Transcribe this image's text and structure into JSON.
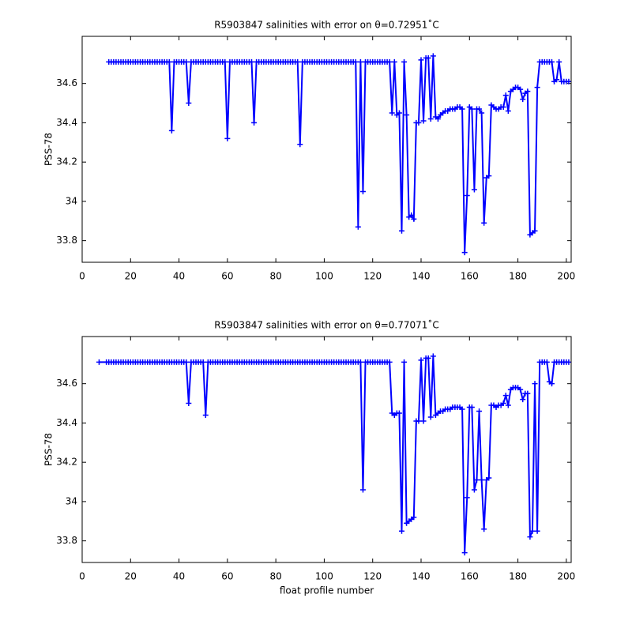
{
  "chart_data": [
    {
      "type": "line",
      "title": "R5903847 salinities with error on θ=0.72951˚C",
      "ylabel": "PSS-78",
      "color": "#0000ff",
      "marker": "+",
      "xlim": [
        0,
        202
      ],
      "ylim": [
        33.69,
        34.84
      ],
      "xticks": [
        0,
        20,
        40,
        60,
        80,
        100,
        120,
        140,
        160,
        180,
        200
      ],
      "yticks": [
        33.8,
        34,
        34.2,
        34.4,
        34.6
      ],
      "x": [
        11,
        12,
        13,
        14,
        15,
        16,
        17,
        18,
        19,
        20,
        21,
        22,
        23,
        24,
        25,
        26,
        27,
        28,
        29,
        30,
        31,
        32,
        33,
        34,
        35,
        36,
        37,
        38,
        39,
        40,
        41,
        42,
        43,
        44,
        45,
        46,
        47,
        48,
        49,
        50,
        51,
        52,
        53,
        54,
        55,
        56,
        57,
        58,
        59,
        60,
        61,
        62,
        63,
        64,
        65,
        66,
        67,
        68,
        69,
        70,
        71,
        72,
        73,
        74,
        75,
        76,
        77,
        78,
        79,
        80,
        81,
        82,
        83,
        84,
        85,
        86,
        87,
        88,
        89,
        90,
        91,
        92,
        93,
        94,
        95,
        96,
        97,
        98,
        99,
        100,
        101,
        102,
        103,
        104,
        105,
        106,
        107,
        108,
        109,
        110,
        111,
        112,
        113,
        114,
        115,
        116,
        117,
        118,
        119,
        120,
        121,
        122,
        123,
        124,
        125,
        126,
        127,
        128,
        129,
        130,
        131,
        132,
        133,
        134,
        135,
        136,
        137,
        138,
        139,
        140,
        141,
        142,
        143,
        144,
        145,
        146,
        147,
        148,
        149,
        150,
        151,
        152,
        153,
        154,
        155,
        156,
        157,
        158,
        159,
        160,
        161,
        162,
        163,
        164,
        165,
        166,
        167,
        168,
        169,
        170,
        171,
        172,
        173,
        174,
        175,
        176,
        177,
        178,
        179,
        180,
        181,
        182,
        183,
        184,
        185,
        186,
        187,
        188,
        189,
        190,
        191,
        192,
        193,
        194,
        195,
        196,
        197,
        198,
        199,
        200,
        201
      ],
      "values": [
        34.71,
        34.71,
        34.71,
        34.71,
        34.71,
        34.71,
        34.71,
        34.71,
        34.71,
        34.71,
        34.71,
        34.71,
        34.71,
        34.71,
        34.71,
        34.71,
        34.71,
        34.71,
        34.71,
        34.71,
        34.71,
        34.71,
        34.71,
        34.71,
        34.71,
        34.71,
        34.36,
        34.71,
        34.71,
        34.71,
        34.71,
        34.71,
        34.71,
        34.5,
        34.71,
        34.71,
        34.71,
        34.71,
        34.71,
        34.71,
        34.71,
        34.71,
        34.71,
        34.71,
        34.71,
        34.71,
        34.71,
        34.71,
        34.71,
        34.32,
        34.71,
        34.71,
        34.71,
        34.71,
        34.71,
        34.71,
        34.71,
        34.71,
        34.71,
        34.71,
        34.4,
        34.71,
        34.71,
        34.71,
        34.71,
        34.71,
        34.71,
        34.71,
        34.71,
        34.71,
        34.71,
        34.71,
        34.71,
        34.71,
        34.71,
        34.71,
        34.71,
        34.71,
        34.71,
        34.29,
        34.71,
        34.71,
        34.71,
        34.71,
        34.71,
        34.71,
        34.71,
        34.71,
        34.71,
        34.71,
        34.71,
        34.71,
        34.71,
        34.71,
        34.71,
        34.71,
        34.71,
        34.71,
        34.71,
        34.71,
        34.71,
        34.71,
        34.71,
        33.87,
        34.71,
        34.05,
        34.71,
        34.71,
        34.71,
        34.71,
        34.71,
        34.71,
        34.71,
        34.71,
        34.71,
        34.71,
        34.71,
        34.45,
        34.71,
        34.44,
        34.45,
        33.85,
        34.71,
        34.44,
        33.92,
        33.93,
        33.91,
        34.4,
        34.4,
        34.72,
        34.41,
        34.73,
        34.73,
        34.42,
        34.74,
        34.43,
        34.42,
        34.44,
        34.45,
        34.46,
        34.46,
        34.47,
        34.47,
        34.47,
        34.48,
        34.48,
        34.47,
        33.74,
        34.03,
        34.48,
        34.47,
        34.06,
        34.47,
        34.47,
        34.45,
        33.89,
        34.12,
        34.13,
        34.49,
        34.48,
        34.47,
        34.47,
        34.48,
        34.48,
        34.54,
        34.46,
        34.56,
        34.57,
        34.58,
        34.58,
        34.57,
        34.52,
        34.55,
        34.56,
        33.83,
        33.84,
        33.85,
        34.58,
        34.71,
        34.71,
        34.71,
        34.71,
        34.71,
        34.71,
        34.61,
        34.62,
        34.71,
        34.61,
        34.61,
        34.61,
        34.61
      ]
    },
    {
      "type": "line",
      "title": "R5903847 salinities with error on θ=0.77071˚C",
      "ylabel": "PSS-78",
      "xlabel": "float profile number",
      "color": "#0000ff",
      "marker": "+",
      "xlim": [
        0,
        202
      ],
      "ylim": [
        33.69,
        34.84
      ],
      "xticks": [
        0,
        20,
        40,
        60,
        80,
        100,
        120,
        140,
        160,
        180,
        200
      ],
      "yticks": [
        33.8,
        34,
        34.2,
        34.4,
        34.6
      ],
      "x": [
        7,
        10,
        11,
        12,
        13,
        14,
        15,
        16,
        17,
        18,
        19,
        20,
        21,
        22,
        23,
        24,
        25,
        26,
        27,
        28,
        29,
        30,
        31,
        32,
        33,
        34,
        35,
        36,
        37,
        38,
        39,
        40,
        41,
        42,
        43,
        44,
        45,
        46,
        47,
        48,
        49,
        50,
        51,
        52,
        53,
        54,
        55,
        56,
        57,
        58,
        59,
        60,
        61,
        62,
        63,
        64,
        65,
        66,
        67,
        68,
        69,
        70,
        71,
        72,
        73,
        74,
        75,
        76,
        77,
        78,
        79,
        80,
        81,
        82,
        83,
        84,
        85,
        86,
        87,
        88,
        89,
        90,
        91,
        92,
        93,
        94,
        95,
        96,
        97,
        98,
        99,
        100,
        101,
        102,
        103,
        104,
        105,
        106,
        107,
        108,
        109,
        110,
        111,
        112,
        113,
        114,
        115,
        116,
        117,
        118,
        119,
        120,
        121,
        122,
        123,
        124,
        125,
        126,
        127,
        128,
        129,
        130,
        131,
        132,
        133,
        134,
        135,
        136,
        137,
        138,
        139,
        140,
        141,
        142,
        143,
        144,
        145,
        146,
        147,
        148,
        149,
        150,
        151,
        152,
        153,
        154,
        155,
        156,
        157,
        158,
        159,
        160,
        161,
        162,
        163,
        164,
        165,
        166,
        167,
        168,
        169,
        170,
        171,
        172,
        173,
        174,
        175,
        176,
        177,
        178,
        179,
        180,
        181,
        182,
        183,
        184,
        185,
        186,
        187,
        188,
        189,
        190,
        191,
        192,
        193,
        194,
        195,
        196,
        197,
        198,
        199,
        200,
        201
      ],
      "values": [
        34.71,
        34.71,
        34.71,
        34.71,
        34.71,
        34.71,
        34.71,
        34.71,
        34.71,
        34.71,
        34.71,
        34.71,
        34.71,
        34.71,
        34.71,
        34.71,
        34.71,
        34.71,
        34.71,
        34.71,
        34.71,
        34.71,
        34.71,
        34.71,
        34.71,
        34.71,
        34.71,
        34.71,
        34.71,
        34.71,
        34.71,
        34.71,
        34.71,
        34.71,
        34.71,
        34.5,
        34.71,
        34.71,
        34.71,
        34.71,
        34.71,
        34.71,
        34.44,
        34.71,
        34.71,
        34.71,
        34.71,
        34.71,
        34.71,
        34.71,
        34.71,
        34.71,
        34.71,
        34.71,
        34.71,
        34.71,
        34.71,
        34.71,
        34.71,
        34.71,
        34.71,
        34.71,
        34.71,
        34.71,
        34.71,
        34.71,
        34.71,
        34.71,
        34.71,
        34.71,
        34.71,
        34.71,
        34.71,
        34.71,
        34.71,
        34.71,
        34.71,
        34.71,
        34.71,
        34.71,
        34.71,
        34.71,
        34.71,
        34.71,
        34.71,
        34.71,
        34.71,
        34.71,
        34.71,
        34.71,
        34.71,
        34.71,
        34.71,
        34.71,
        34.71,
        34.71,
        34.71,
        34.71,
        34.71,
        34.71,
        34.71,
        34.71,
        34.71,
        34.71,
        34.71,
        34.71,
        34.71,
        34.06,
        34.71,
        34.71,
        34.71,
        34.71,
        34.71,
        34.71,
        34.71,
        34.71,
        34.71,
        34.71,
        34.71,
        34.45,
        34.44,
        34.45,
        34.45,
        33.85,
        34.71,
        33.89,
        33.9,
        33.91,
        33.92,
        34.41,
        34.41,
        34.72,
        34.41,
        34.73,
        34.73,
        34.43,
        34.74,
        34.44,
        34.45,
        34.46,
        34.46,
        34.47,
        34.47,
        34.47,
        34.48,
        34.48,
        34.48,
        34.48,
        34.47,
        33.74,
        34.02,
        34.48,
        34.48,
        34.06,
        34.11,
        34.46,
        34.11,
        33.86,
        34.11,
        34.12,
        34.49,
        34.49,
        34.48,
        34.49,
        34.49,
        34.5,
        34.54,
        34.49,
        34.57,
        34.58,
        34.58,
        34.58,
        34.57,
        34.52,
        34.55,
        34.55,
        33.82,
        33.85,
        34.6,
        33.85,
        34.71,
        34.71,
        34.71,
        34.71,
        34.61,
        34.6,
        34.71,
        34.71,
        34.71,
        34.71,
        34.71,
        34.71,
        34.71
      ]
    }
  ]
}
